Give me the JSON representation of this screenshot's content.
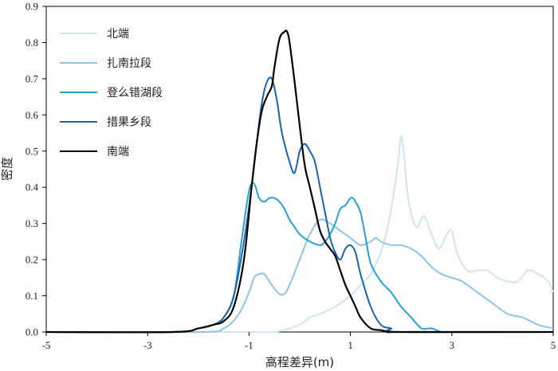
{
  "chart_data": {
    "type": "line",
    "title": "",
    "xlabel": "高程差异(m)",
    "ylabel": "密度",
    "xlim": [
      -5,
      5
    ],
    "ylim": [
      0,
      0.9
    ],
    "xticks": [
      "-5",
      "-3",
      "-1",
      "1",
      "3",
      "5"
    ],
    "yticks": [
      "0.0",
      "0.1",
      "0.2",
      "0.3",
      "0.4",
      "0.5",
      "0.6",
      "0.7",
      "0.8",
      "0.9"
    ],
    "grid": false,
    "legend_position": "top-left",
    "series": [
      {
        "name": "北端",
        "color": "#d2e3f0",
        "x": [
          -5,
          -3,
          -1.5,
          -1,
          -0.5,
          -0.2,
          0,
          0.2,
          0.4,
          0.7,
          1.0,
          1.2,
          1.4,
          1.6,
          1.75,
          1.85,
          1.95,
          2.0,
          2.05,
          2.15,
          2.3,
          2.45,
          2.6,
          2.75,
          2.9,
          3.0,
          3.1,
          3.3,
          3.5,
          3.7,
          3.9,
          4.1,
          4.3,
          4.5,
          4.7,
          4.9,
          5.0
        ],
        "y": [
          0,
          0,
          0,
          0,
          0,
          0.01,
          0.02,
          0.04,
          0.05,
          0.07,
          0.1,
          0.13,
          0.16,
          0.22,
          0.3,
          0.38,
          0.48,
          0.54,
          0.5,
          0.36,
          0.29,
          0.32,
          0.27,
          0.23,
          0.27,
          0.28,
          0.22,
          0.17,
          0.17,
          0.17,
          0.15,
          0.14,
          0.14,
          0.17,
          0.16,
          0.14,
          0.11
        ]
      },
      {
        "name": "扎南拉段",
        "color": "#8ec5e6",
        "x": [
          -5,
          -2,
          -1.5,
          -1.2,
          -1.0,
          -0.9,
          -0.8,
          -0.7,
          -0.6,
          -0.5,
          -0.4,
          -0.3,
          -0.2,
          0,
          0.2,
          0.4,
          0.6,
          0.8,
          1.0,
          1.2,
          1.4,
          1.5,
          1.6,
          1.8,
          2.0,
          2.2,
          2.4,
          2.6,
          2.8,
          3.0,
          3.2,
          3.5,
          3.8,
          4.1,
          4.4,
          4.7,
          5.0
        ],
        "y": [
          0,
          0,
          0.01,
          0.05,
          0.11,
          0.15,
          0.16,
          0.16,
          0.14,
          0.12,
          0.105,
          0.105,
          0.13,
          0.2,
          0.27,
          0.31,
          0.3,
          0.28,
          0.26,
          0.24,
          0.25,
          0.26,
          0.25,
          0.24,
          0.24,
          0.23,
          0.21,
          0.18,
          0.16,
          0.15,
          0.14,
          0.11,
          0.08,
          0.05,
          0.04,
          0.02,
          0.01
        ]
      },
      {
        "name": "登么错湖段",
        "color": "#2a9fd6",
        "x": [
          -5,
          -2.5,
          -2.0,
          -1.7,
          -1.5,
          -1.3,
          -1.15,
          -1.0,
          -0.9,
          -0.8,
          -0.7,
          -0.6,
          -0.5,
          -0.4,
          -0.3,
          -0.2,
          -0.1,
          0,
          0.2,
          0.4,
          0.5,
          0.6,
          0.7,
          0.8,
          0.9,
          1.0,
          1.05,
          1.1,
          1.2,
          1.3,
          1.4,
          1.6,
          1.8,
          2.0,
          2.2,
          2.4,
          2.6,
          2.8,
          3.0,
          3.2,
          5.0
        ],
        "y": [
          0,
          0,
          0.01,
          0.02,
          0.04,
          0.1,
          0.25,
          0.39,
          0.41,
          0.37,
          0.36,
          0.37,
          0.37,
          0.36,
          0.34,
          0.31,
          0.29,
          0.27,
          0.25,
          0.24,
          0.25,
          0.27,
          0.3,
          0.34,
          0.35,
          0.37,
          0.37,
          0.36,
          0.33,
          0.26,
          0.19,
          0.14,
          0.11,
          0.07,
          0.04,
          0.01,
          0.01,
          0,
          0,
          0,
          0
        ]
      },
      {
        "name": "措果乡段",
        "color": "#1a63a8",
        "x": [
          -5,
          -2.5,
          -2.0,
          -1.7,
          -1.5,
          -1.3,
          -1.1,
          -0.95,
          -0.85,
          -0.75,
          -0.65,
          -0.55,
          -0.45,
          -0.35,
          -0.2,
          -0.1,
          0,
          0.1,
          0.2,
          0.3,
          0.4,
          0.5,
          0.6,
          0.7,
          0.8,
          0.9,
          1.0,
          1.1,
          1.2,
          1.4,
          1.6,
          1.8,
          2.0,
          5.0
        ],
        "y": [
          0,
          0,
          0.01,
          0.02,
          0.04,
          0.1,
          0.25,
          0.4,
          0.52,
          0.63,
          0.69,
          0.7,
          0.64,
          0.55,
          0.47,
          0.44,
          0.5,
          0.52,
          0.5,
          0.47,
          0.4,
          0.33,
          0.26,
          0.22,
          0.2,
          0.23,
          0.24,
          0.22,
          0.16,
          0.07,
          0.02,
          0.01,
          0,
          0
        ]
      },
      {
        "name": "南端",
        "color": "#000000",
        "x": [
          -5,
          -2.5,
          -2.0,
          -1.7,
          -1.5,
          -1.3,
          -1.1,
          -0.95,
          -0.85,
          -0.75,
          -0.65,
          -0.55,
          -0.5,
          -0.4,
          -0.3,
          -0.25,
          -0.2,
          -0.1,
          0,
          0.1,
          0.2,
          0.3,
          0.4,
          0.5,
          0.6,
          0.7,
          0.8,
          0.9,
          1.0,
          1.1,
          1.2,
          1.4,
          1.6,
          1.8,
          2.0,
          5.0
        ],
        "y": [
          0,
          0,
          0.01,
          0.02,
          0.03,
          0.07,
          0.2,
          0.4,
          0.52,
          0.61,
          0.65,
          0.68,
          0.73,
          0.81,
          0.83,
          0.83,
          0.8,
          0.69,
          0.57,
          0.46,
          0.4,
          0.34,
          0.28,
          0.25,
          0.23,
          0.21,
          0.17,
          0.13,
          0.1,
          0.07,
          0.04,
          0.01,
          0.005,
          0,
          0,
          0
        ]
      }
    ]
  }
}
